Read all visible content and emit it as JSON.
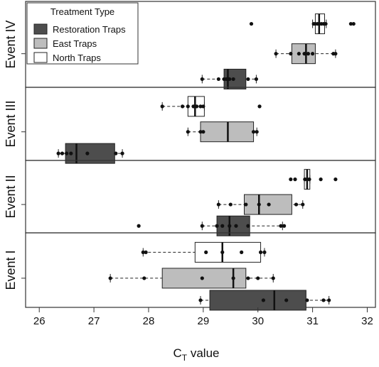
{
  "chart_data": {
    "type": "boxplot",
    "xlabel_main": "C",
    "xlabel_sub": "T",
    "xlabel_rest": " value",
    "xlim": [
      25.75,
      32.15
    ],
    "x_ticks": [
      26,
      27,
      28,
      29,
      30,
      31,
      32
    ],
    "legend": {
      "title": "Treatment Type",
      "position": "top-left",
      "entries": [
        {
          "name": "Restoration Traps",
          "color": "#4d4d4d"
        },
        {
          "name": "East Traps",
          "color": "#bdbdbd"
        },
        {
          "name": "North Traps",
          "color": "#ffffff"
        }
      ]
    },
    "panels": [
      {
        "label": "Event IV",
        "groups": [
          {
            "series": "North Traps",
            "whisker_low": 31.0,
            "q1": 31.05,
            "median": 31.12,
            "q3": 31.22,
            "whisker_high": 31.25,
            "points": [
              31.02,
              31.05,
              31.09,
              31.12,
              31.16,
              31.2,
              31.24
            ],
            "outliers": [
              29.88,
              31.7,
              31.75
            ]
          },
          {
            "series": "East Traps",
            "whisker_low": 30.33,
            "q1": 30.62,
            "median": 30.88,
            "q3": 31.05,
            "whisker_high": 31.42,
            "points": [
              30.33,
              30.6,
              30.75,
              30.85,
              30.92,
              31.0,
              31.38,
              31.42
            ],
            "outliers": []
          },
          {
            "series": "Restoration Traps",
            "whisker_low": 28.98,
            "q1": 29.38,
            "median": 29.45,
            "q3": 29.78,
            "whisker_high": 29.97,
            "points": [
              28.98,
              29.28,
              29.38,
              29.42,
              29.48,
              29.55,
              29.82,
              29.97
            ],
            "outliers": []
          }
        ]
      },
      {
        "label": "Event III",
        "groups": [
          {
            "series": "North Traps",
            "whisker_low": 28.25,
            "q1": 28.72,
            "median": 28.85,
            "q3": 29.02,
            "whisker_high": 29.02,
            "points": [
              28.25,
              28.62,
              28.72,
              28.82,
              28.88,
              28.95,
              29.0
            ],
            "outliers": [
              30.03
            ]
          },
          {
            "series": "East Traps",
            "whisker_low": 28.72,
            "q1": 28.95,
            "median": 29.45,
            "q3": 29.92,
            "whisker_high": 29.98,
            "points": [
              28.72,
              28.95,
              29.0,
              29.92,
              29.98
            ],
            "outliers": []
          },
          {
            "series": "Restoration Traps",
            "whisker_low": 26.35,
            "q1": 26.48,
            "median": 26.68,
            "q3": 27.38,
            "whisker_high": 27.52,
            "points": [
              26.35,
              26.42,
              26.5,
              26.58,
              26.88,
              27.4,
              27.52
            ],
            "outliers": []
          }
        ]
      },
      {
        "label": "Event II",
        "groups": [
          {
            "series": "North Traps",
            "whisker_low": 30.85,
            "q1": 30.85,
            "median": 30.9,
            "q3": 30.95,
            "whisker_high": 30.95,
            "points": [
              30.86,
              30.9,
              30.94
            ],
            "outliers": [
              30.6,
              30.68,
              31.15,
              31.42
            ]
          },
          {
            "series": "East Traps",
            "whisker_low": 29.28,
            "q1": 29.75,
            "median": 30.02,
            "q3": 30.62,
            "whisker_high": 30.82,
            "points": [
              29.28,
              29.5,
              29.78,
              30.02,
              30.2,
              30.7,
              30.82
            ],
            "outliers": []
          },
          {
            "series": "Restoration Traps",
            "whisker_low": 28.98,
            "q1": 29.25,
            "median": 29.48,
            "q3": 29.85,
            "whisker_high": 30.45,
            "points": [
              28.98,
              29.25,
              29.35,
              29.48,
              29.6,
              29.82,
              30.42,
              30.48
            ],
            "outliers": [
              27.82
            ]
          }
        ]
      },
      {
        "label": "Event I",
        "groups": [
          {
            "series": "North Traps",
            "whisker_low": 27.9,
            "q1": 28.85,
            "median": 29.35,
            "q3": 30.05,
            "whisker_high": 30.12,
            "points": [
              27.9,
              27.95,
              29.05,
              29.35,
              29.7,
              30.05,
              30.12
            ],
            "outliers": []
          },
          {
            "series": "East Traps",
            "whisker_low": 27.3,
            "q1": 28.25,
            "median": 29.55,
            "q3": 29.78,
            "whisker_high": 30.28,
            "points": [
              27.3,
              27.92,
              28.98,
              29.55,
              29.82,
              30.0,
              30.28
            ],
            "outliers": []
          },
          {
            "series": "Restoration Traps",
            "whisker_low": 28.95,
            "q1": 29.12,
            "median": 30.3,
            "q3": 30.88,
            "whisker_high": 31.3,
            "points": [
              28.95,
              30.1,
              30.52,
              30.9,
              31.2,
              31.3
            ],
            "outliers": []
          }
        ]
      }
    ]
  }
}
